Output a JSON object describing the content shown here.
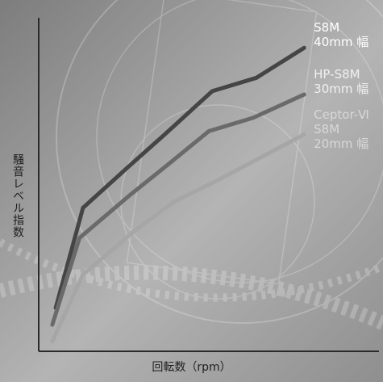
{
  "chart_data": {
    "type": "line",
    "title": "",
    "xlabel": "回転数（rpm）",
    "ylabel": "騒音レベル指数",
    "xlim": [
      0,
      10
    ],
    "ylim": [
      0,
      10
    ],
    "grid": false,
    "series": [
      {
        "name_lines": [
          "S8M",
          "40mm 幅"
        ],
        "color": "#454545",
        "x": [
          0.5,
          1.3,
          2.6,
          3.7,
          5.1,
          6.4,
          7.8
        ],
        "y": [
          1.3,
          4.3,
          5.5,
          6.5,
          7.8,
          8.2,
          9.1
        ]
      },
      {
        "name_lines": [
          "HP-S8M",
          "30mm 幅"
        ],
        "color": "#6a6a6a",
        "x": [
          0.4,
          1.2,
          2.7,
          3.8,
          5.0,
          6.3,
          7.8
        ],
        "y": [
          0.8,
          3.4,
          4.7,
          5.6,
          6.6,
          7.0,
          7.7
        ]
      },
      {
        "name_lines": [
          "Ceptor-Ⅵ",
          "S8M",
          "20mm 幅"
        ],
        "color": "#a6a6a6",
        "x": [
          0.4,
          1.3,
          2.8,
          4.0,
          5.2,
          6.5,
          7.8
        ],
        "y": [
          0.3,
          2.3,
          3.6,
          4.5,
          5.1,
          5.8,
          6.5
        ]
      }
    ]
  }
}
